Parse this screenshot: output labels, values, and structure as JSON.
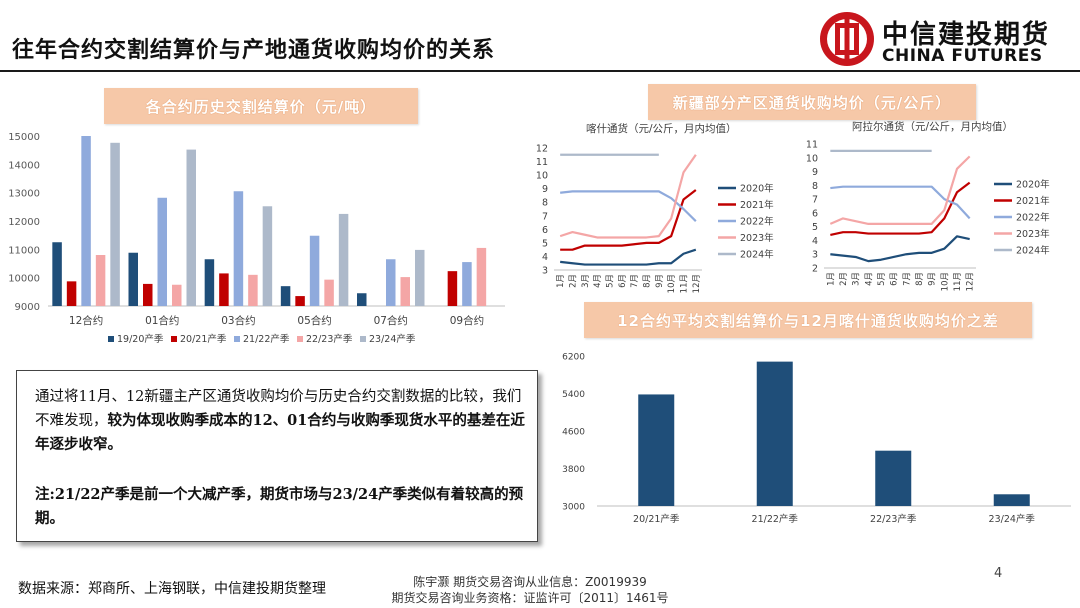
{
  "page": {
    "title": "往年合约交割结算价与产地通货收购均价的关系",
    "logo": {
      "cn": "中信建投期货",
      "en": "CHINA FUTURES"
    },
    "page_number": "4",
    "footer_source": "数据来源：郑商所、上海钢联，中信建投期货整理",
    "footer_analyst": "陈宇灏 期货交易咨询从业信息：Z0019939",
    "footer_license": "期货交易咨询业务资格：证监许可〔2011〕1461号"
  },
  "sections": {
    "left_chart_title": "各合约历史交割结算价（元/吨）",
    "right_top_title": "新疆部分产区通货收购均价（元/公斤）",
    "right_bottom_title": "12合约平均交割结算价与12月喀什通货收购均价之差"
  },
  "note": {
    "p1_plain": "通过将11月、12新疆主产区通货收购均价与历史合约交割数据的比较，我们不难发现，",
    "p1_bold": "较为体现收购季成本的12、01合约与收购季现货水平的基差在近年逐步收窄。",
    "p2": "注:21/22产季是前一个大减产季，期货市场与23/24产季类似有着较高的预期。"
  },
  "colors": {
    "s1": "#1f4e79",
    "s2": "#c00000",
    "s3": "#8faadc",
    "s4": "#f4a6a6",
    "s5": "#adb9ca",
    "bar_dark": "#1f4e79",
    "tag_bg": "#f6c8a8"
  },
  "chart_data": [
    {
      "id": "settlement",
      "type": "bar",
      "title": "各合约历史交割结算价（元/吨）",
      "categories": [
        "12合约",
        "01合约",
        "03合约",
        "05合约",
        "07合约",
        "09合约"
      ],
      "ylim": [
        9000,
        15000
      ],
      "yticks": [
        9000,
        10000,
        11000,
        12000,
        13000,
        14000,
        15000
      ],
      "legend": "bottom",
      "series": [
        {
          "name": "19/20产季",
          "values": [
            11250,
            10880,
            10650,
            9700,
            9450,
            null
          ]
        },
        {
          "name": "20/21产季",
          "values": [
            9870,
            9780,
            10150,
            9350,
            null,
            10230
          ]
        },
        {
          "name": "21/22产季",
          "values": [
            15000,
            12820,
            13050,
            11480,
            10650,
            10550
          ]
        },
        {
          "name": "22/23产季",
          "values": [
            10800,
            9750,
            10100,
            9930,
            10020,
            11050
          ]
        },
        {
          "name": "23/24产季",
          "values": [
            14760,
            14520,
            12520,
            12250,
            10980,
            null
          ]
        }
      ]
    },
    {
      "id": "kashi",
      "type": "line",
      "title": "喀什通货（元/公斤，月内均值）",
      "categories": [
        "1月",
        "2月",
        "3月",
        "4月",
        "5月",
        "6月",
        "7月",
        "8月",
        "9月",
        "10月",
        "11月",
        "12月"
      ],
      "ylim": [
        3,
        12
      ],
      "yticks": [
        3,
        4,
        5,
        6,
        7,
        8,
        9,
        10,
        11,
        12
      ],
      "legend": "right",
      "series": [
        {
          "name": "2020年",
          "values": [
            3.6,
            3.5,
            3.4,
            3.4,
            3.4,
            3.4,
            3.4,
            3.4,
            3.5,
            3.5,
            4.2,
            4.5
          ]
        },
        {
          "name": "2021年",
          "values": [
            4.5,
            4.5,
            4.8,
            4.8,
            4.8,
            4.8,
            4.9,
            5.0,
            5.0,
            5.5,
            8.2,
            8.9
          ]
        },
        {
          "name": "2022年",
          "values": [
            8.7,
            8.8,
            8.8,
            8.8,
            8.8,
            8.8,
            8.8,
            8.8,
            8.8,
            8.3,
            7.5,
            6.6
          ]
        },
        {
          "name": "2023年",
          "values": [
            5.5,
            5.8,
            5.6,
            5.4,
            5.4,
            5.4,
            5.4,
            5.4,
            5.5,
            6.8,
            10.2,
            11.5
          ]
        },
        {
          "name": "2024年",
          "values": [
            11.5,
            11.5,
            11.5,
            11.5,
            11.5,
            11.5,
            11.5,
            11.5,
            11.5,
            null,
            null,
            null
          ]
        }
      ]
    },
    {
      "id": "alaer",
      "type": "line",
      "title": "阿拉尔通货（元/公斤，月内均值）",
      "categories": [
        "1月",
        "2月",
        "3月",
        "4月",
        "5月",
        "6月",
        "7月",
        "8月",
        "9月",
        "10月",
        "11月",
        "12月"
      ],
      "ylim": [
        2,
        11
      ],
      "yticks": [
        2,
        3,
        4,
        5,
        6,
        7,
        8,
        9,
        10,
        11
      ],
      "legend": "right",
      "series": [
        {
          "name": "2020年",
          "values": [
            3.0,
            2.9,
            2.8,
            2.5,
            2.6,
            2.8,
            3.0,
            3.1,
            3.1,
            3.4,
            4.3,
            4.1
          ]
        },
        {
          "name": "2021年",
          "values": [
            4.4,
            4.6,
            4.6,
            4.5,
            4.5,
            4.5,
            4.5,
            4.5,
            4.6,
            5.6,
            7.5,
            8.2
          ]
        },
        {
          "name": "2022年",
          "values": [
            7.8,
            7.9,
            7.9,
            7.9,
            7.9,
            7.9,
            7.9,
            7.9,
            7.9,
            7.0,
            6.6,
            5.6
          ]
        },
        {
          "name": "2023年",
          "values": [
            5.2,
            5.6,
            5.4,
            5.2,
            5.2,
            5.2,
            5.2,
            5.2,
            5.2,
            6.2,
            9.2,
            10.1
          ]
        },
        {
          "name": "2024年",
          "values": [
            10.5,
            10.5,
            10.5,
            10.5,
            10.5,
            10.5,
            10.5,
            10.5,
            10.5,
            null,
            null,
            null
          ]
        }
      ]
    },
    {
      "id": "spread",
      "type": "bar",
      "title": "12合约平均交割结算价与12月喀什通货收购均价之差",
      "categories": [
        "20/21产季",
        "21/22产季",
        "22/23产季",
        "23/24产季"
      ],
      "values": [
        5380,
        6080,
        4180,
        3250
      ],
      "ylim": [
        3000,
        6200
      ],
      "yticks": [
        3000,
        3800,
        4600,
        5400,
        6200
      ]
    }
  ]
}
